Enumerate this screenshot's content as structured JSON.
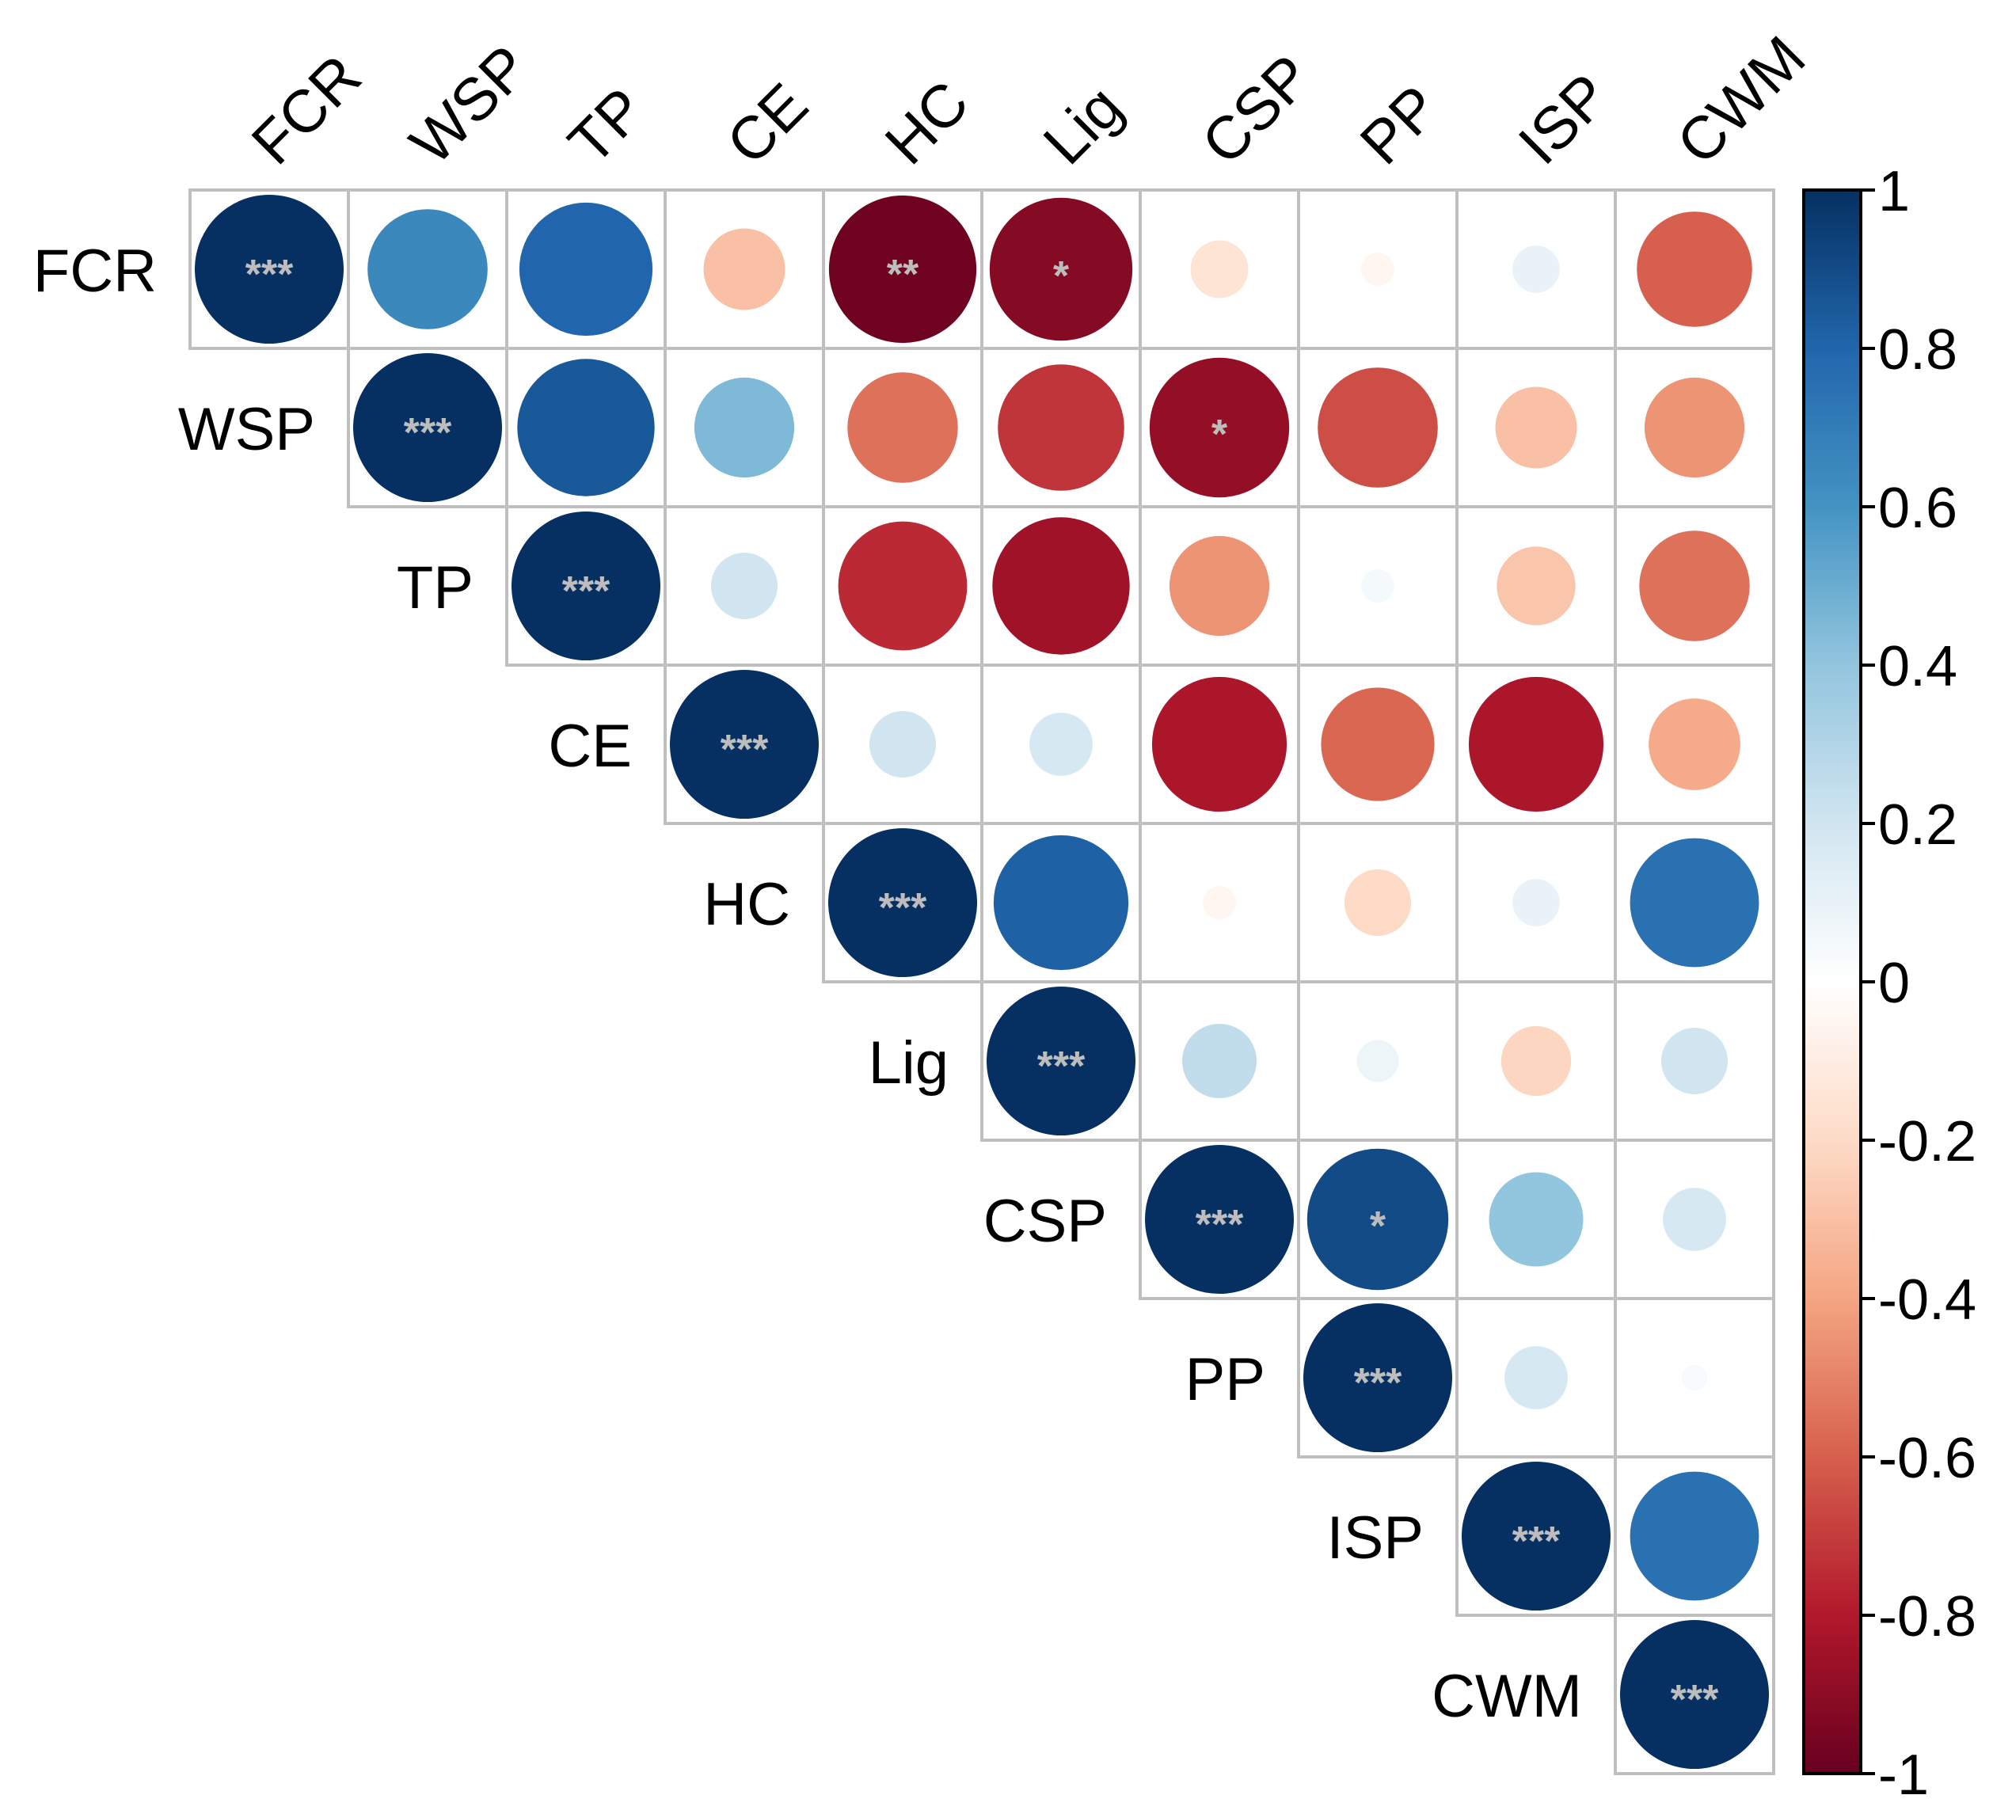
{
  "chart_data": {
    "type": "heatmap",
    "subtype": "correlation-circle-upper-triangle",
    "variables": [
      "FCR",
      "WSP",
      "TP",
      "CE",
      "HC",
      "Lig",
      "CSP",
      "PP",
      "ISP",
      "CWM"
    ],
    "matrix": [
      [
        1.0,
        0.65,
        0.8,
        -0.3,
        -0.98,
        -0.92,
        -0.15,
        -0.05,
        0.1,
        -0.6
      ],
      [
        null,
        1.0,
        0.85,
        0.45,
        -0.55,
        -0.72,
        -0.88,
        -0.65,
        -0.3,
        -0.45
      ],
      [
        null,
        null,
        1.0,
        0.2,
        -0.75,
        -0.85,
        -0.45,
        0.05,
        -0.28,
        -0.55
      ],
      [
        null,
        null,
        null,
        1.0,
        0.2,
        0.18,
        -0.82,
        -0.58,
        -0.82,
        -0.38
      ],
      [
        null,
        null,
        null,
        null,
        1.0,
        0.82,
        -0.05,
        -0.2,
        0.1,
        0.75
      ],
      [
        null,
        null,
        null,
        null,
        null,
        1.0,
        0.25,
        0.08,
        -0.22,
        0.2
      ],
      [
        null,
        null,
        null,
        null,
        null,
        null,
        1.0,
        0.9,
        0.4,
        0.18
      ],
      [
        null,
        null,
        null,
        null,
        null,
        null,
        null,
        1.0,
        0.18,
        0.03
      ],
      [
        null,
        null,
        null,
        null,
        null,
        null,
        null,
        null,
        1.0,
        0.75
      ],
      [
        null,
        null,
        null,
        null,
        null,
        null,
        null,
        null,
        null,
        1.0
      ]
    ],
    "significance": [
      [
        "***",
        "",
        "",
        "",
        "**",
        "*",
        "",
        "",
        "",
        ""
      ],
      [
        "",
        "***",
        "",
        "",
        "",
        "",
        "*",
        "",
        "",
        ""
      ],
      [
        "",
        "",
        "***",
        "",
        "",
        "",
        "",
        "",
        "",
        ""
      ],
      [
        "",
        "",
        "",
        "***",
        "",
        "",
        "",
        "",
        "",
        ""
      ],
      [
        "",
        "",
        "",
        "",
        "***",
        "",
        "",
        "",
        "",
        ""
      ],
      [
        "",
        "",
        "",
        "",
        "",
        "***",
        "",
        "",
        "",
        ""
      ],
      [
        "",
        "",
        "",
        "",
        "",
        "",
        "***",
        "*",
        "",
        ""
      ],
      [
        "",
        "",
        "",
        "",
        "",
        "",
        "",
        "***",
        "",
        ""
      ],
      [
        "",
        "",
        "",
        "",
        "",
        "",
        "",
        "",
        "***",
        ""
      ],
      [
        "",
        "",
        "",
        "",
        "",
        "",
        "",
        "",
        "",
        "***"
      ]
    ],
    "color_scale": {
      "range": [
        -1,
        1
      ],
      "ticks": [
        "1",
        "0.8",
        "0.6",
        "0.4",
        "0.2",
        "0",
        "-0.2",
        "-0.4",
        "-0.6",
        "-0.8",
        "-1"
      ],
      "tick_values": [
        1,
        0.8,
        0.6,
        0.4,
        0.2,
        0,
        -0.2,
        -0.4,
        -0.6,
        -0.8,
        -1
      ],
      "colors": [
        "#67001F",
        "#B2182B",
        "#D6604D",
        "#F4A582",
        "#FDDBC7",
        "#FFFFFF",
        "#D1E5F0",
        "#92C5DE",
        "#4393C3",
        "#2166AC",
        "#053061"
      ]
    },
    "legend_position": "right"
  }
}
